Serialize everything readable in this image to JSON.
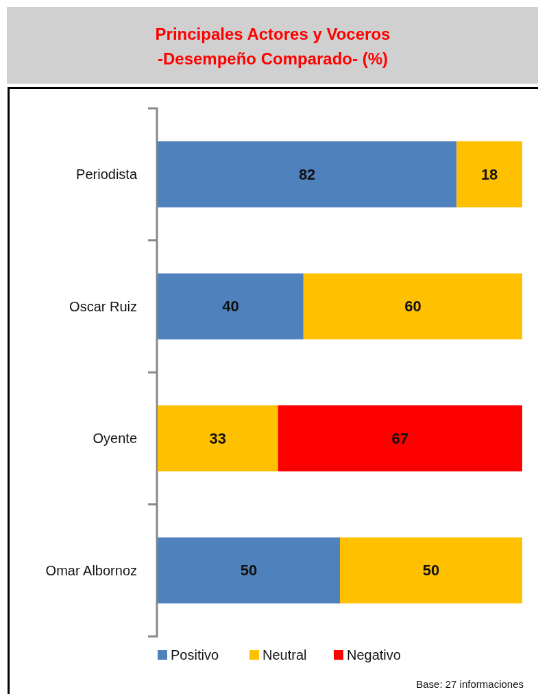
{
  "chart_data": {
    "type": "bar",
    "orientation": "horizontal",
    "stacked": true,
    "title": "Principales Actores y Voceros\n-Desempeño Comparado- (%)",
    "categories": [
      "Periodista",
      "Oscar Ruiz",
      "Oyente",
      "Omar Albornoz"
    ],
    "xlim": [
      0,
      100
    ],
    "tick_labels": "y",
    "data_labels": true,
    "legend": "bottom",
    "series": [
      {
        "name": "Positivo",
        "color": "#4f81bd",
        "values": [
          82,
          40,
          null,
          50
        ]
      },
      {
        "name": "Neutral",
        "color": "#ffc000",
        "values": [
          18,
          60,
          33,
          50
        ]
      },
      {
        "name": "Negativo",
        "color": "#ff0000",
        "values": [
          null,
          null,
          67,
          null
        ]
      }
    ],
    "annotations": [
      "Base: 27 informaciones"
    ]
  }
}
